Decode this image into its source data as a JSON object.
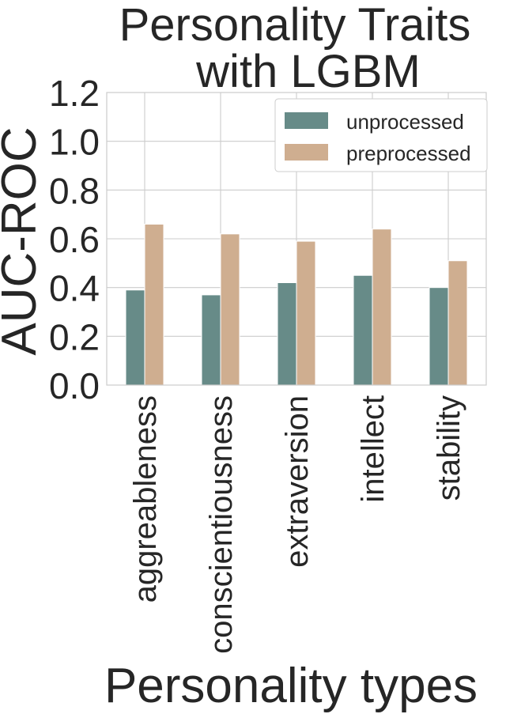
{
  "chart_data": {
    "type": "bar",
    "title_lines": [
      "Personality Traits",
      "with LGBM"
    ],
    "xlabel": "Personality types",
    "ylabel": "AUC-ROC",
    "categories": [
      "aggreableness",
      "conscientiousness",
      "extraversion",
      "intellect",
      "stability"
    ],
    "series": [
      {
        "name": "unprocessed",
        "color": "#678b88",
        "values": [
          0.39,
          0.37,
          0.42,
          0.45,
          0.4
        ]
      },
      {
        "name": "preprocessed",
        "color": "#cfae90",
        "values": [
          0.66,
          0.62,
          0.59,
          0.64,
          0.51
        ]
      }
    ],
    "ylim": [
      0.0,
      1.2
    ],
    "yticks": [
      "0.0",
      "0.2",
      "0.4",
      "0.6",
      "0.8",
      "1.0",
      "1.2"
    ],
    "grid": true,
    "legend_position": "top-right"
  }
}
